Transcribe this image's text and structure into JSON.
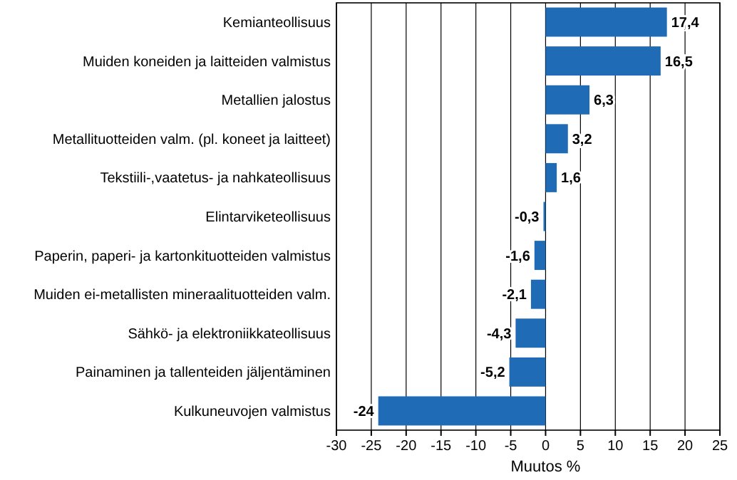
{
  "chart_data": {
    "type": "bar",
    "orientation": "horizontal",
    "xlabel": "Muutos %",
    "categories": [
      "Kemianteollisuus",
      "Muiden koneiden ja laitteiden valmistus",
      "Metallien jalostus",
      "Metallituotteiden valm. (pl. koneet ja laitteet)",
      "Tekstiili-,vaatetus- ja nahkateollisuus",
      "Elintarviketeollisuus",
      "Paperin, paperi- ja kartonkituotteiden valmistus",
      "Muiden ei-metallisten mineraalituotteiden valm.",
      "Sähkö- ja elektroniikkateollisuus",
      "Painaminen ja tallenteiden jäljentäminen",
      "Kulkuneuvojen valmistus"
    ],
    "values": [
      17.4,
      16.5,
      6.3,
      3.2,
      1.6,
      -0.3,
      -1.6,
      -2.1,
      -4.3,
      -5.2,
      -24
    ],
    "value_labels": [
      "17,4",
      "16,5",
      "6,3",
      "3,2",
      "1,6",
      "-0,3",
      "-1,6",
      "-2,1",
      "-4,3",
      "-5,2",
      "-24"
    ],
    "color": "#1f6bb5",
    "xlim": [
      -30,
      25
    ],
    "xticks": [
      -30,
      -25,
      -20,
      -15,
      -10,
      -5,
      0,
      5,
      10,
      15,
      20,
      25
    ],
    "grid": "x"
  }
}
